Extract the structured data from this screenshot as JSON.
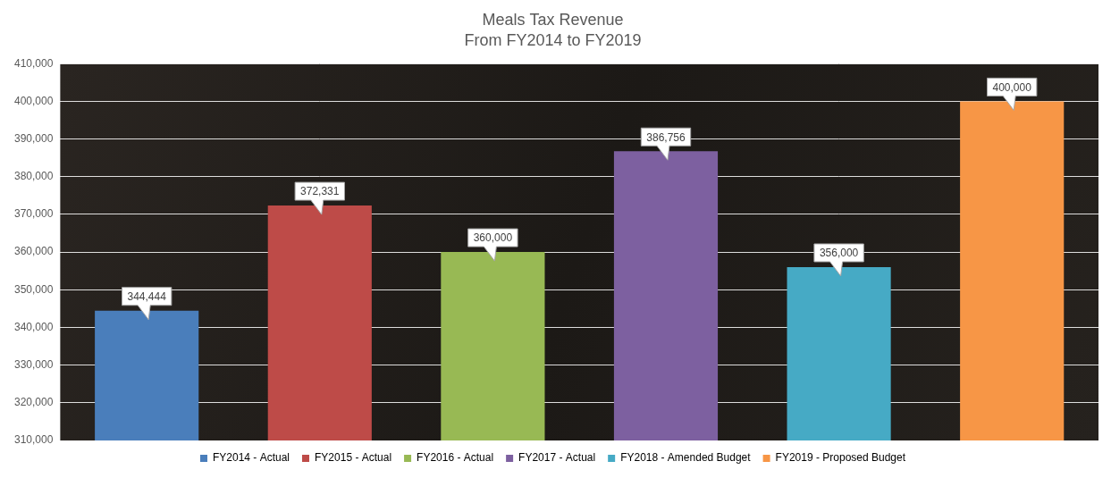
{
  "chart_data": {
    "type": "bar",
    "title": "Meals Tax Revenue",
    "subtitle": "From FY2014 to FY2019",
    "categories": [
      "FY2014 - Actual",
      "FY2015 - Actual",
      "FY2016 - Actual",
      "FY2017 - Actual",
      "FY2018 - Amended Budget",
      "FY2019 - Proposed Budget"
    ],
    "values": [
      344444,
      372331,
      360000,
      386756,
      356000,
      400000
    ],
    "value_labels": [
      "344,444",
      "372,331",
      "360,000",
      "386,756",
      "356,000",
      "400,000"
    ],
    "colors": [
      "#4a7ebb",
      "#be4b48",
      "#98b954",
      "#7d60a0",
      "#46aac5",
      "#f79646"
    ],
    "ylim": [
      310000,
      410000
    ],
    "yticks": [
      {
        "value": 310000,
        "label": "310,000"
      },
      {
        "value": 320000,
        "label": "320,000"
      },
      {
        "value": 330000,
        "label": "330,000"
      },
      {
        "value": 340000,
        "label": "340,000"
      },
      {
        "value": 350000,
        "label": "350,000"
      },
      {
        "value": 360000,
        "label": "360,000"
      },
      {
        "value": 370000,
        "label": "370,000"
      },
      {
        "value": 380000,
        "label": "380,000"
      },
      {
        "value": 390000,
        "label": "390,000"
      },
      {
        "value": 400000,
        "label": "400,000"
      },
      {
        "value": 410000,
        "label": "410,000"
      }
    ],
    "grid": true,
    "legend": "bottom",
    "data_labels": true,
    "tick_labels": "y"
  }
}
